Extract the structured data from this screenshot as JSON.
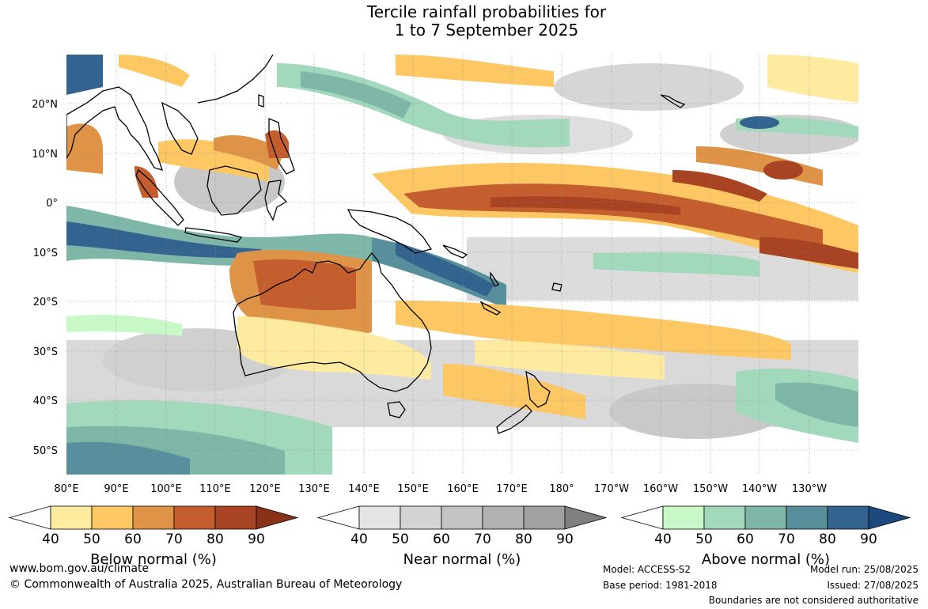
{
  "title": {
    "line1": "Tercile rainfall probabilities for",
    "line2": "1 to 7 September 2025"
  },
  "map": {
    "lat_labels": [
      "20°N",
      "10°N",
      "0°",
      "10°S",
      "20°S",
      "30°S",
      "40°S",
      "50°S"
    ],
    "lon_labels": [
      "80°E",
      "90°E",
      "100°E",
      "110°E",
      "120°E",
      "130°E",
      "140°E",
      "150°E",
      "160°E",
      "170°E",
      "180°",
      "170°W",
      "160°W",
      "150°W",
      "140°W",
      "130°W"
    ]
  },
  "colorbars": [
    {
      "name": "below-normal",
      "title": "Below normal (%)",
      "ticks": [
        "40",
        "50",
        "60",
        "70",
        "80",
        "90"
      ],
      "colors": [
        "#ffeba0",
        "#fdc764",
        "#de9346",
        "#c55e2f",
        "#a84424",
        "#8a3218"
      ]
    },
    {
      "name": "near-normal",
      "title": "Near normal (%)",
      "ticks": [
        "40",
        "50",
        "60",
        "70",
        "80",
        "90"
      ],
      "colors": [
        "#e4e4e4",
        "#d4d4d4",
        "#c3c3c3",
        "#b2b2b2",
        "#a1a1a1",
        "#808080"
      ]
    },
    {
      "name": "above-normal",
      "title": "Above normal (%)",
      "ticks": [
        "40",
        "50",
        "60",
        "70",
        "80",
        "90"
      ],
      "colors": [
        "#c8f8c8",
        "#a2d8bc",
        "#7eb6a8",
        "#578f9c",
        "#33638f",
        "#1d4a7e"
      ]
    }
  ],
  "footer": {
    "url": "www.bom.gov.au/climate",
    "copyright": "© Commonwealth of Australia 2025, Australian Bureau of Meteorology",
    "model": "Model: ACCESS-S2",
    "base_period": "Base period: 1981-2018",
    "model_run": "Model run: 25/08/2025",
    "issued": "Issued: 27/08/2025",
    "disclaimer": "Boundaries are not considered authoritative"
  }
}
